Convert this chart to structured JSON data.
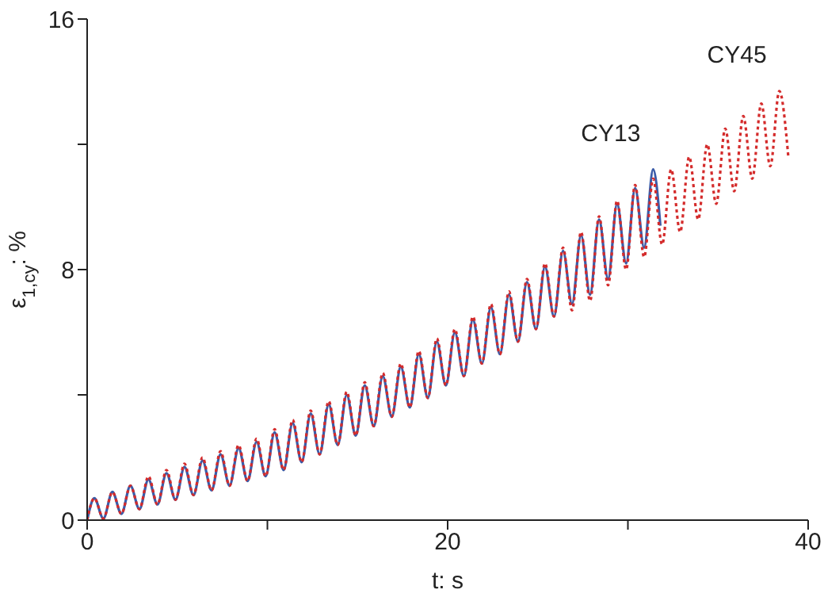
{
  "chart_data": {
    "type": "line",
    "xlabel": "t: s",
    "ylabel": "ε$_{1,cy}$: %",
    "xlim": [
      0,
      40
    ],
    "ylim": [
      0,
      16
    ],
    "xticks": [
      0,
      {
        "value": 10,
        "label": null
      },
      20,
      {
        "value": 30,
        "label": null
      },
      40
    ],
    "yticks": [
      0,
      {
        "value": 4,
        "label": null
      },
      8,
      {
        "value": 12,
        "label": null
      },
      16
    ],
    "marker": "none",
    "series": [
      {
        "name": "CY13",
        "color": "#3b5ca8",
        "line_style": "solid",
        "x": [
          0,
          0.4,
          0.9,
          1.4,
          1.9,
          2.4,
          2.9,
          3.4,
          3.9,
          4.4,
          4.9,
          5.4,
          5.9,
          6.4,
          6.9,
          7.4,
          7.9,
          8.4,
          8.9,
          9.4,
          9.9,
          10.4,
          10.9,
          11.4,
          11.9,
          12.4,
          12.9,
          13.4,
          13.9,
          14.4,
          14.9,
          15.4,
          15.9,
          16.4,
          16.9,
          17.4,
          17.9,
          18.4,
          18.9,
          19.4,
          19.9,
          20.4,
          20.9,
          21.4,
          21.9,
          22.4,
          22.9,
          23.4,
          23.9,
          24.4,
          24.9,
          25.4,
          25.9,
          26.4,
          26.9,
          27.4,
          27.9,
          28.4,
          28.9,
          29.4,
          29.9,
          30.4,
          30.9,
          31.4,
          31.8
        ],
        "values": [
          0,
          0.7,
          0.05,
          0.9,
          0.2,
          1.1,
          0.35,
          1.3,
          0.5,
          1.5,
          0.65,
          1.7,
          0.8,
          1.9,
          0.95,
          2.1,
          1.1,
          2.3,
          1.25,
          2.5,
          1.4,
          2.8,
          1.6,
          3.1,
          1.85,
          3.4,
          2.1,
          3.7,
          2.4,
          4.0,
          2.7,
          4.3,
          3.0,
          4.6,
          3.3,
          4.9,
          3.6,
          5.3,
          3.9,
          5.7,
          4.3,
          6.0,
          4.6,
          6.4,
          5.0,
          6.8,
          5.3,
          7.2,
          5.7,
          7.6,
          6.1,
          8.1,
          6.5,
          8.6,
          6.9,
          9.1,
          7.2,
          9.6,
          7.7,
          10.1,
          8.2,
          10.6,
          8.7,
          11.2,
          9.4
        ]
      },
      {
        "name": "CY45",
        "color": "#d42b2b",
        "line_style": "dotted",
        "x": [
          0,
          0.4,
          0.9,
          1.4,
          1.9,
          2.4,
          2.9,
          3.4,
          3.9,
          4.4,
          4.9,
          5.4,
          5.9,
          6.4,
          6.9,
          7.4,
          7.9,
          8.4,
          8.9,
          9.4,
          9.9,
          10.4,
          10.9,
          11.4,
          11.9,
          12.4,
          12.9,
          13.4,
          13.9,
          14.4,
          14.9,
          15.4,
          15.9,
          16.4,
          16.9,
          17.4,
          17.9,
          18.4,
          18.9,
          19.4,
          19.9,
          20.4,
          20.9,
          21.4,
          21.9,
          22.4,
          22.9,
          23.4,
          23.9,
          24.4,
          24.9,
          25.4,
          25.9,
          26.4,
          26.9,
          27.4,
          27.9,
          28.4,
          28.9,
          29.4,
          29.9,
          30.4,
          30.9,
          31.4,
          31.9,
          32.4,
          32.9,
          33.4,
          33.9,
          34.4,
          34.9,
          35.4,
          35.9,
          36.4,
          36.9,
          37.4,
          37.9,
          38.4,
          38.9
        ],
        "values": [
          0,
          0.7,
          0.05,
          0.9,
          0.2,
          1.1,
          0.35,
          1.4,
          0.5,
          1.6,
          0.65,
          1.8,
          0.8,
          2.0,
          0.95,
          2.2,
          1.1,
          2.4,
          1.25,
          2.6,
          1.4,
          2.9,
          1.6,
          3.2,
          1.85,
          3.5,
          2.1,
          3.8,
          2.4,
          4.1,
          2.7,
          4.4,
          3.0,
          4.7,
          3.3,
          5.0,
          3.6,
          5.4,
          3.9,
          5.8,
          4.3,
          6.1,
          4.6,
          6.5,
          5.0,
          6.9,
          5.3,
          7.3,
          5.7,
          7.7,
          6.1,
          8.2,
          6.5,
          8.7,
          6.7,
          9.2,
          7.0,
          9.7,
          7.5,
          10.2,
          8.0,
          10.7,
          8.4,
          10.9,
          8.8,
          11.2,
          9.2,
          11.6,
          9.6,
          12.0,
          10.1,
          12.5,
          10.5,
          12.9,
          10.9,
          13.3,
          11.3,
          13.7,
          11.6
        ]
      }
    ]
  }
}
